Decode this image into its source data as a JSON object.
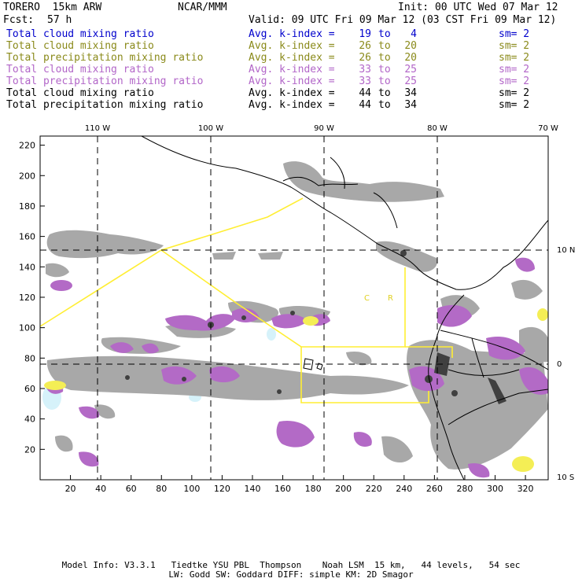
{
  "header": {
    "model": "TORERO  15km ARW",
    "center": "NCAR/MMM",
    "init": "Init: 00 UTC Wed 07 Mar 12",
    "fcst_label": "Fcst:",
    "fcst_value": "57 h",
    "valid": "Valid: 09 UTC Fri 09 Mar 12 (03 CST Fri 09 Mar 12)"
  },
  "legend": [
    {
      "label": "Total cloud mixing ratio",
      "avg": "Avg. k-index =",
      "hi": "19",
      "to": "to",
      "lo": "4",
      "sm": "sm= 2",
      "color": "#0000cc"
    },
    {
      "label": "Total cloud mixing ratio",
      "avg": "Avg. k-index =",
      "hi": "26",
      "to": "to",
      "lo": "20",
      "sm": "sm= 2",
      "color": "#8a8a1a"
    },
    {
      "label": "Total precipitation mixing ratio",
      "avg": "Avg. k-index =",
      "hi": "26",
      "to": "to",
      "lo": "20",
      "sm": "sm= 2",
      "color": "#8a8a1a"
    },
    {
      "label": "Total cloud mixing ratio",
      "avg": "Avg. k-index =",
      "hi": "33",
      "to": "to",
      "lo": "25",
      "sm": "sm= 2",
      "color": "#b266c8"
    },
    {
      "label": "Total precipitation mixing ratio",
      "avg": "Avg. k-index =",
      "hi": "33",
      "to": "to",
      "lo": "25",
      "sm": "sm= 2",
      "color": "#b266c8"
    },
    {
      "label": "Total cloud mixing ratio",
      "avg": "Avg. k-index =",
      "hi": "44",
      "to": "to",
      "lo": "34",
      "sm": "sm= 2",
      "color": "#000000"
    },
    {
      "label": "Total precipitation mixing ratio",
      "avg": "Avg. k-index =",
      "hi": "44",
      "to": "to",
      "lo": "34",
      "sm": "sm= 2",
      "color": "#000000"
    }
  ],
  "map": {
    "lon_labels": [
      "110 W",
      "100 W",
      "90 W",
      "80 W",
      "70 W"
    ],
    "lat_labels": [
      "10 N",
      "0",
      "10 S"
    ],
    "x_ticks": [
      "20",
      "40",
      "60",
      "80",
      "100",
      "120",
      "140",
      "160",
      "180",
      "200",
      "220",
      "240",
      "260",
      "280",
      "300",
      "320"
    ],
    "y_ticks": [
      "20",
      "40",
      "60",
      "80",
      "100",
      "120",
      "140",
      "160",
      "180",
      "200",
      "220"
    ],
    "country_labels": [
      "C",
      "R"
    ],
    "colors": {
      "land": "#000000",
      "grid": "#000000",
      "boundary": "#ffee33",
      "cloud_gray": "#a8a8a8",
      "precip_purple": "#b36ac6",
      "yellow": "#f4ee55",
      "cyan": "#d6f2fa"
    }
  },
  "footer": {
    "line1": "Model Info: V3.3.1   Tiedtke YSU PBL  Thompson    Noah LSM  15 km,   44 levels,   54 sec",
    "line2": "LW: Godd SW: Goddard DIFF: simple KM: 2D Smagor"
  }
}
